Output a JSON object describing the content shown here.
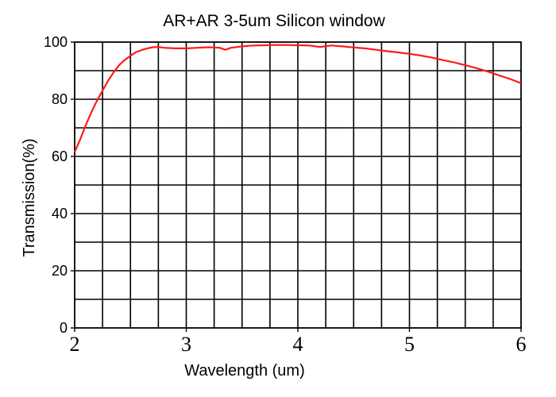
{
  "chart_data": {
    "type": "line",
    "title": "AR+AR 3-5um Silicon window",
    "xlabel": "Wavelength (um)",
    "ylabel": "Transmission(%)",
    "xlim": [
      2,
      6
    ],
    "ylim": [
      0,
      100
    ],
    "x_ticks": [
      "2",
      "3",
      "4",
      "5",
      "6"
    ],
    "y_ticks": [
      "0",
      "20",
      "40",
      "60",
      "80",
      "100"
    ],
    "x_grid_step": 0.25,
    "y_grid_step": 10,
    "grid": true,
    "legend": "none",
    "series_color": "#ff1a1a",
    "series": [
      {
        "x": [
          2.0,
          2.05,
          2.1,
          2.15,
          2.2,
          2.25,
          2.3,
          2.35,
          2.4,
          2.45,
          2.5,
          2.55,
          2.6,
          2.65,
          2.7,
          2.75,
          2.8,
          2.9,
          3.0,
          3.1,
          3.2,
          3.3,
          3.35,
          3.4,
          3.5,
          3.6,
          3.7,
          3.8,
          3.9,
          4.0,
          4.1,
          4.2,
          4.3,
          4.4,
          4.5,
          4.6,
          4.7,
          4.8,
          4.9,
          5.0,
          5.1,
          5.2,
          5.3,
          5.4,
          5.5,
          5.6,
          5.7,
          5.8,
          5.9,
          6.0
        ],
        "y": [
          61.5,
          66,
          71,
          75.5,
          79.5,
          83,
          86.5,
          89.5,
          92,
          93.8,
          95.2,
          96.5,
          97.2,
          97.8,
          98.2,
          98.3,
          98,
          97.8,
          97.8,
          98,
          98.2,
          98,
          97.3,
          98,
          98.5,
          98.8,
          98.9,
          99,
          99,
          98.9,
          98.8,
          98.3,
          98.8,
          98.5,
          98.1,
          97.8,
          97.3,
          96.8,
          96.4,
          95.9,
          95.3,
          94.6,
          93.7,
          92.9,
          91.9,
          90.9,
          89.7,
          88.4,
          87.1,
          85.6
        ]
      }
    ]
  }
}
